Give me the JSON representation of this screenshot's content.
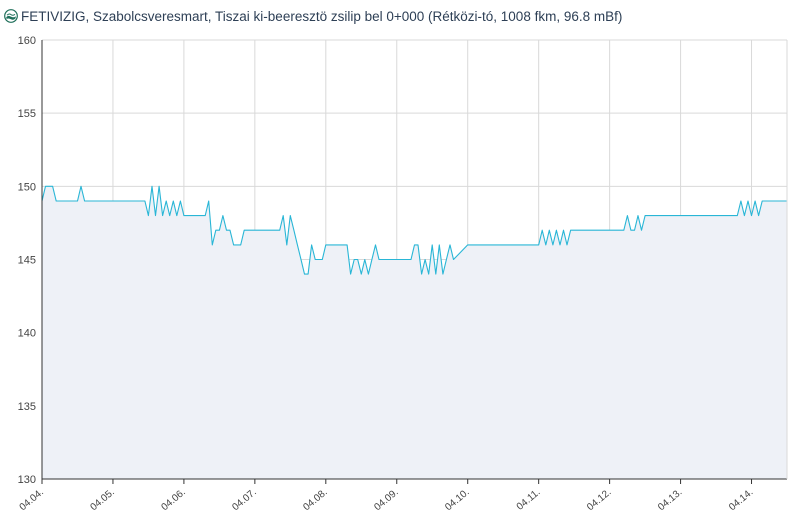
{
  "header": {
    "title": "FETIVIZIG, Szabolcsveresmart, Tiszai ki-beeresztö zsilip bel 0+000 (Rétközi-tó, 1008 fkm, 96.8 mBf)",
    "logo_icon": "water-drop-logo-icon"
  },
  "colors": {
    "line": "#29b6d6",
    "area": "#eef1f7",
    "grid": "#d9d9d9",
    "axis": "#333333",
    "title": "#2d3f55"
  },
  "chart_data": {
    "type": "area",
    "title": "FETIVIZIG, Szabolcsveresmart, Tiszai ki-beeresztö zsilip bel 0+000 (Rétközi-tó, 1008 fkm, 96.8 mBf)",
    "xlabel": "",
    "ylabel": "",
    "ylim": [
      130,
      160
    ],
    "yticks": [
      130,
      135,
      140,
      145,
      150,
      155,
      160
    ],
    "xlim": [
      0,
      10.5
    ],
    "xticks": [
      {
        "value": 0,
        "label": "04.04."
      },
      {
        "value": 1,
        "label": "04.05."
      },
      {
        "value": 2,
        "label": "04.06."
      },
      {
        "value": 3,
        "label": "04.07."
      },
      {
        "value": 4,
        "label": "04.08."
      },
      {
        "value": 5,
        "label": "04.09."
      },
      {
        "value": 6,
        "label": "04.10."
      },
      {
        "value": 7,
        "label": "04.11."
      },
      {
        "value": 8,
        "label": "04.12."
      },
      {
        "value": 9,
        "label": "04.13."
      },
      {
        "value": 10,
        "label": "04.14."
      }
    ],
    "grid": true,
    "legend": "none",
    "series": [
      {
        "x": [
          0,
          0.05,
          0.15,
          0.2,
          0.25,
          0.5,
          0.55,
          0.6,
          0.65,
          1.0,
          1.3,
          1.45,
          1.5,
          1.55,
          1.6,
          1.65,
          1.7,
          1.75,
          1.8,
          1.85,
          1.9,
          1.95,
          2.0,
          2.3,
          2.35,
          2.4,
          2.45,
          2.5,
          2.55,
          2.6,
          2.65,
          2.7,
          2.8,
          2.85,
          3.0,
          3.35,
          3.4,
          3.45,
          3.5,
          3.55,
          3.6,
          3.65,
          3.7,
          3.75,
          3.8,
          3.85,
          3.95,
          4.0,
          4.1,
          4.3,
          4.35,
          4.4,
          4.45,
          4.5,
          4.55,
          4.6,
          4.65,
          4.7,
          4.75,
          4.8,
          5.0,
          5.2,
          5.25,
          5.3,
          5.35,
          5.4,
          5.45,
          5.5,
          5.55,
          5.6,
          5.65,
          5.7,
          5.75,
          5.8,
          6.0,
          6.5,
          7.0,
          7.05,
          7.1,
          7.15,
          7.2,
          7.25,
          7.3,
          7.35,
          7.4,
          7.45,
          7.5,
          7.8,
          8.0,
          8.2,
          8.25,
          8.3,
          8.35,
          8.4,
          8.45,
          8.5,
          8.6,
          9.0,
          9.5,
          9.8,
          9.85,
          9.9,
          9.95,
          10.0,
          10.05,
          10.1,
          10.15,
          10.2,
          10.25,
          10.3,
          10.5
        ],
        "y": [
          149,
          150,
          150,
          149,
          149,
          149,
          150,
          149,
          149,
          149,
          149,
          149,
          148,
          150,
          148,
          150,
          148,
          149,
          148,
          149,
          148,
          149,
          148,
          148,
          149,
          146,
          147,
          147,
          148,
          147,
          147,
          146,
          146,
          147,
          147,
          147,
          148,
          146,
          148,
          147,
          146,
          145,
          144,
          144,
          146,
          145,
          145,
          146,
          146,
          146,
          144,
          145,
          145,
          144,
          145,
          144,
          145,
          146,
          145,
          145,
          145,
          145,
          146,
          146,
          144,
          145,
          144,
          146,
          144,
          146,
          144,
          145,
          146,
          145,
          146,
          146,
          146,
          147,
          146,
          147,
          146,
          147,
          146,
          147,
          146,
          147,
          147,
          147,
          147,
          147,
          148,
          147,
          147,
          148,
          147,
          148,
          148,
          148,
          148,
          148,
          149,
          148,
          149,
          148,
          149,
          148,
          149,
          149,
          149,
          149,
          149
        ]
      }
    ]
  }
}
